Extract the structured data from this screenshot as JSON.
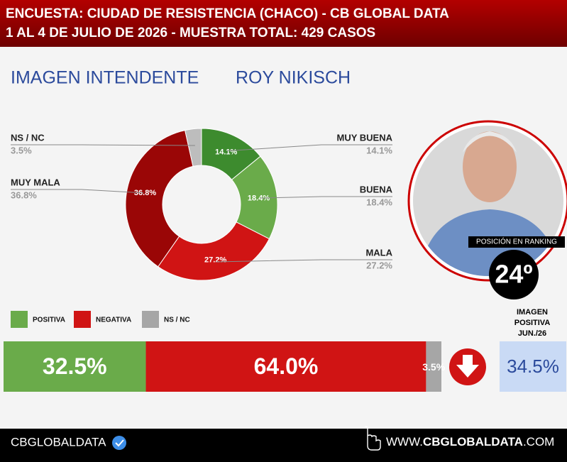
{
  "header": {
    "line1": "ENCUESTA: CIUDAD DE RESISTENCIA (CHACO) - CB GLOBAL DATA",
    "line2": "1 AL 4 DE JULIO DE 2026 - MUESTRA TOTAL: 429 CASOS"
  },
  "subject": {
    "topic": "IMAGEN INTENDENTE",
    "name": "ROY NIKISCH"
  },
  "ranking": {
    "label": "POSICIÓN EN RANKING",
    "value": "24º"
  },
  "chart_data": [
    {
      "type": "donut",
      "categories": [
        "MUY BUENA",
        "BUENA",
        "MALA",
        "MUY MALA",
        "NS / NC"
      ],
      "values": [
        14.1,
        18.4,
        27.2,
        36.8,
        3.5
      ],
      "value_labels": [
        "14.1%",
        "18.4%",
        "27.2%",
        "36.8%",
        "3.5%"
      ],
      "colors": [
        "#3d8b2e",
        "#6aab4a",
        "#d01414",
        "#9a0606",
        "#bdbdbd"
      ]
    },
    {
      "type": "stacked-bar",
      "orientation": "horizontal",
      "series": [
        {
          "name": "POSITIVA",
          "color": "#6aab4a",
          "values": [
            32.5
          ],
          "value_labels": [
            "32.5%"
          ]
        },
        {
          "name": "NEGATIVA",
          "color": "#d01414",
          "values": [
            64.0
          ],
          "value_labels": [
            "64.0%"
          ]
        },
        {
          "name": "NS / NC",
          "color": "#a6a6a6",
          "values": [
            3.5
          ],
          "value_labels": [
            "3.5%"
          ]
        }
      ]
    }
  ],
  "previous": {
    "label": [
      "IMAGEN",
      "POSITIVA",
      "JUN./26"
    ],
    "value": "34.5%"
  },
  "footer": {
    "brand": "CBGLOBALDATA",
    "site_prefix": "WWW.",
    "site_main": "CBGLOBALDATA",
    "site_suffix": ".COM"
  }
}
